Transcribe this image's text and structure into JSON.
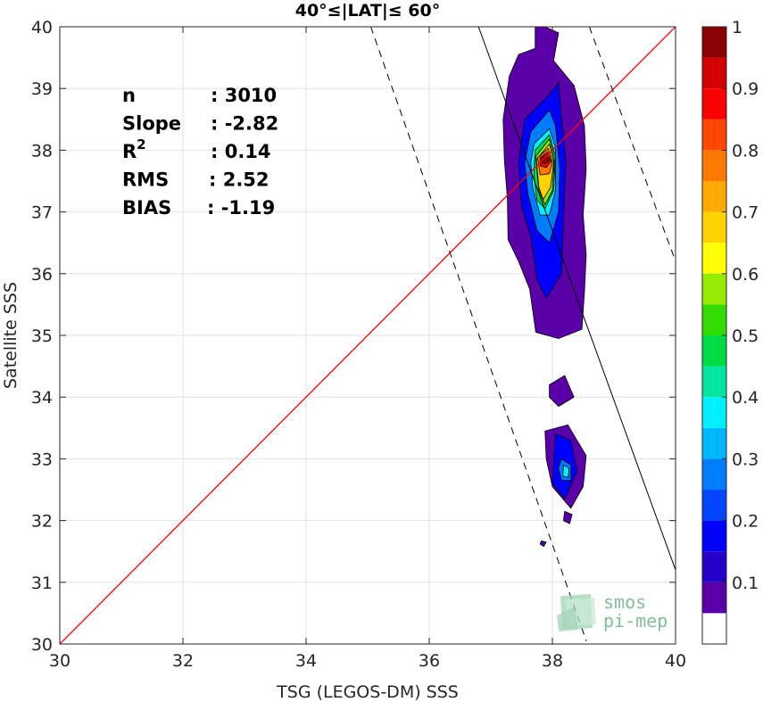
{
  "chart_data": {
    "type": "heatmap",
    "title": "40°≤|LAT|≤ 60°",
    "xlabel": "TSG (LEGOS-DM) SSS",
    "ylabel": "Satellite SSS",
    "xlim": [
      30,
      40
    ],
    "ylim": [
      30,
      40
    ],
    "xticks": [
      "30",
      "32",
      "34",
      "36",
      "38",
      "40"
    ],
    "yticks": [
      "30",
      "31",
      "32",
      "33",
      "34",
      "35",
      "36",
      "37",
      "38",
      "39",
      "40"
    ],
    "grid": true,
    "stats": [
      {
        "label": "n",
        "value": ": 3010"
      },
      {
        "label": "Slope",
        "value": ": -2.82"
      },
      {
        "label": "R",
        "sup": "2",
        "value": ": 0.14"
      },
      {
        "label": "RMS",
        "value": ": 2.52"
      },
      {
        "label": "BIAS",
        "value": ": -1.19"
      }
    ],
    "reference_line": {
      "name": "1:1",
      "color": "#ff0000",
      "x": [
        30,
        40
      ],
      "y": [
        30,
        40
      ]
    },
    "regression_line": {
      "color": "#000000",
      "x": [
        36.8,
        40.0
      ],
      "y": [
        40.0,
        31.2
      ]
    },
    "confidence_lines": [
      {
        "style": "dashed",
        "x": [
          35.05,
          38.55
        ],
        "y": [
          40.0,
          30.05
        ]
      },
      {
        "style": "dashed",
        "x": [
          38.6,
          40.0
        ],
        "y": [
          40.0,
          36.2
        ]
      }
    ],
    "contours": [
      {
        "level": 0.05,
        "points": [
          [
            37.88,
            40
          ],
          [
            38.1,
            39.9
          ],
          [
            38.02,
            39.45
          ],
          [
            38.35,
            39.05
          ],
          [
            38.52,
            38.4
          ],
          [
            38.55,
            37.7
          ],
          [
            38.5,
            36.95
          ],
          [
            38.55,
            36.3
          ],
          [
            38.52,
            35.7
          ],
          [
            38.48,
            35.1
          ],
          [
            38.1,
            34.95
          ],
          [
            37.73,
            35.05
          ],
          [
            37.63,
            35.75
          ],
          [
            37.45,
            36.2
          ],
          [
            37.28,
            36.55
          ],
          [
            37.27,
            37.2
          ],
          [
            37.22,
            37.85
          ],
          [
            37.2,
            38.5
          ],
          [
            37.3,
            39.2
          ],
          [
            37.45,
            39.55
          ],
          [
            37.72,
            39.65
          ],
          [
            37.72,
            40
          ]
        ]
      },
      {
        "level": 0.05,
        "points": [
          [
            37.95,
            34.2
          ],
          [
            38.2,
            34.35
          ],
          [
            38.35,
            34.0
          ],
          [
            38.1,
            33.85
          ],
          [
            37.95,
            34.0
          ]
        ]
      },
      {
        "level": 0.05,
        "points": [
          [
            37.88,
            33.45
          ],
          [
            38.25,
            33.55
          ],
          [
            38.55,
            33.05
          ],
          [
            38.5,
            32.55
          ],
          [
            38.3,
            32.2
          ],
          [
            38.0,
            32.55
          ],
          [
            37.9,
            33.0
          ]
        ]
      },
      {
        "level": 0.05,
        "points": [
          [
            38.2,
            32.15
          ],
          [
            38.32,
            32.1
          ],
          [
            38.28,
            31.95
          ],
          [
            38.18,
            32.0
          ]
        ]
      },
      {
        "level": 0.05,
        "points": [
          [
            37.82,
            31.67
          ],
          [
            37.9,
            31.65
          ],
          [
            37.86,
            31.58
          ],
          [
            37.8,
            31.62
          ]
        ]
      },
      {
        "level": 0.15,
        "points": [
          [
            37.55,
            38.5
          ],
          [
            37.95,
            38.9
          ],
          [
            38.1,
            39.1
          ],
          [
            38.15,
            38.5
          ],
          [
            38.22,
            37.8
          ],
          [
            38.18,
            36.9
          ],
          [
            38.15,
            36.0
          ],
          [
            37.9,
            35.6
          ],
          [
            37.75,
            35.9
          ],
          [
            37.65,
            36.6
          ],
          [
            37.5,
            37.1
          ],
          [
            37.45,
            37.8
          ]
        ]
      },
      {
        "level": 0.15,
        "points": [
          [
            38.05,
            33.4
          ],
          [
            38.3,
            33.3
          ],
          [
            38.4,
            32.8
          ],
          [
            38.2,
            32.35
          ],
          [
            38.0,
            32.6
          ]
        ]
      },
      {
        "level": 0.25,
        "points": [
          [
            37.65,
            38.3
          ],
          [
            37.95,
            38.65
          ],
          [
            38.05,
            38.4
          ],
          [
            38.12,
            37.7
          ],
          [
            38.1,
            37.0
          ],
          [
            37.95,
            36.5
          ],
          [
            37.75,
            36.7
          ],
          [
            37.6,
            37.3
          ],
          [
            37.55,
            37.8
          ]
        ]
      },
      {
        "level": 0.25,
        "points": [
          [
            38.15,
            33.0
          ],
          [
            38.3,
            32.9
          ],
          [
            38.3,
            32.65
          ],
          [
            38.15,
            32.65
          ],
          [
            38.1,
            32.85
          ]
        ]
      },
      {
        "level": 0.35,
        "points": [
          [
            37.7,
            38.1
          ],
          [
            37.95,
            38.35
          ],
          [
            38.05,
            38.05
          ],
          [
            38.05,
            37.35
          ],
          [
            37.95,
            36.95
          ],
          [
            37.8,
            36.95
          ],
          [
            37.68,
            37.4
          ],
          [
            37.65,
            37.8
          ]
        ]
      },
      {
        "level": 0.35,
        "points": [
          [
            38.18,
            32.9
          ],
          [
            38.27,
            32.85
          ],
          [
            38.26,
            32.7
          ],
          [
            38.17,
            32.72
          ]
        ]
      },
      {
        "level": 0.45,
        "points": [
          [
            37.72,
            38.0
          ],
          [
            37.95,
            38.25
          ],
          [
            38.05,
            37.9
          ],
          [
            38.02,
            37.35
          ],
          [
            37.88,
            37.05
          ],
          [
            37.75,
            37.2
          ],
          [
            37.7,
            37.6
          ]
        ]
      },
      {
        "level": 0.55,
        "points": [
          [
            37.73,
            37.9
          ],
          [
            37.95,
            38.18
          ],
          [
            38.03,
            37.85
          ],
          [
            38.0,
            37.35
          ],
          [
            37.88,
            37.12
          ],
          [
            37.78,
            37.35
          ]
        ]
      },
      {
        "level": 0.65,
        "points": [
          [
            37.74,
            37.85
          ],
          [
            37.95,
            38.1
          ],
          [
            38.02,
            37.8
          ],
          [
            37.97,
            37.4
          ],
          [
            37.85,
            37.2
          ],
          [
            37.78,
            37.4
          ]
        ]
      },
      {
        "level": 0.75,
        "points": [
          [
            37.76,
            37.88
          ],
          [
            37.93,
            38.03
          ],
          [
            38.0,
            37.8
          ],
          [
            37.95,
            37.62
          ],
          [
            37.8,
            37.6
          ]
        ]
      },
      {
        "level": 0.85,
        "points": [
          [
            37.8,
            37.88
          ],
          [
            37.92,
            37.97
          ],
          [
            37.98,
            37.82
          ],
          [
            37.9,
            37.72
          ],
          [
            37.8,
            37.75
          ]
        ]
      },
      {
        "level": 0.95,
        "points": [
          [
            37.83,
            37.88
          ],
          [
            37.91,
            37.92
          ],
          [
            37.95,
            37.83
          ],
          [
            37.88,
            37.78
          ],
          [
            37.82,
            37.8
          ]
        ]
      }
    ],
    "colorbar": {
      "ticks": [
        "0.1",
        "0.2",
        "0.3",
        "0.4",
        "0.5",
        "0.6",
        "0.7",
        "0.8",
        "0.9",
        "1"
      ],
      "levels": [
        0,
        0.05,
        0.1,
        0.15,
        0.2,
        0.25,
        0.3,
        0.35,
        0.4,
        0.45,
        0.5,
        0.55,
        0.6,
        0.65,
        0.7,
        0.75,
        0.8,
        0.85,
        0.9,
        0.95,
        1.0
      ],
      "colors": [
        "#ffffff",
        "#5a00a8",
        "#2400c8",
        "#0000ff",
        "#0046ff",
        "#007cff",
        "#00b6ff",
        "#00f0ff",
        "#00e6a0",
        "#00dc46",
        "#32dc00",
        "#96eb00",
        "#ffff00",
        "#ffd200",
        "#ffaa00",
        "#ff7800",
        "#ff4600",
        "#ff0000",
        "#d20000",
        "#8b0000"
      ]
    },
    "logo": {
      "line1": "smos",
      "line2": "pi-mep"
    }
  }
}
